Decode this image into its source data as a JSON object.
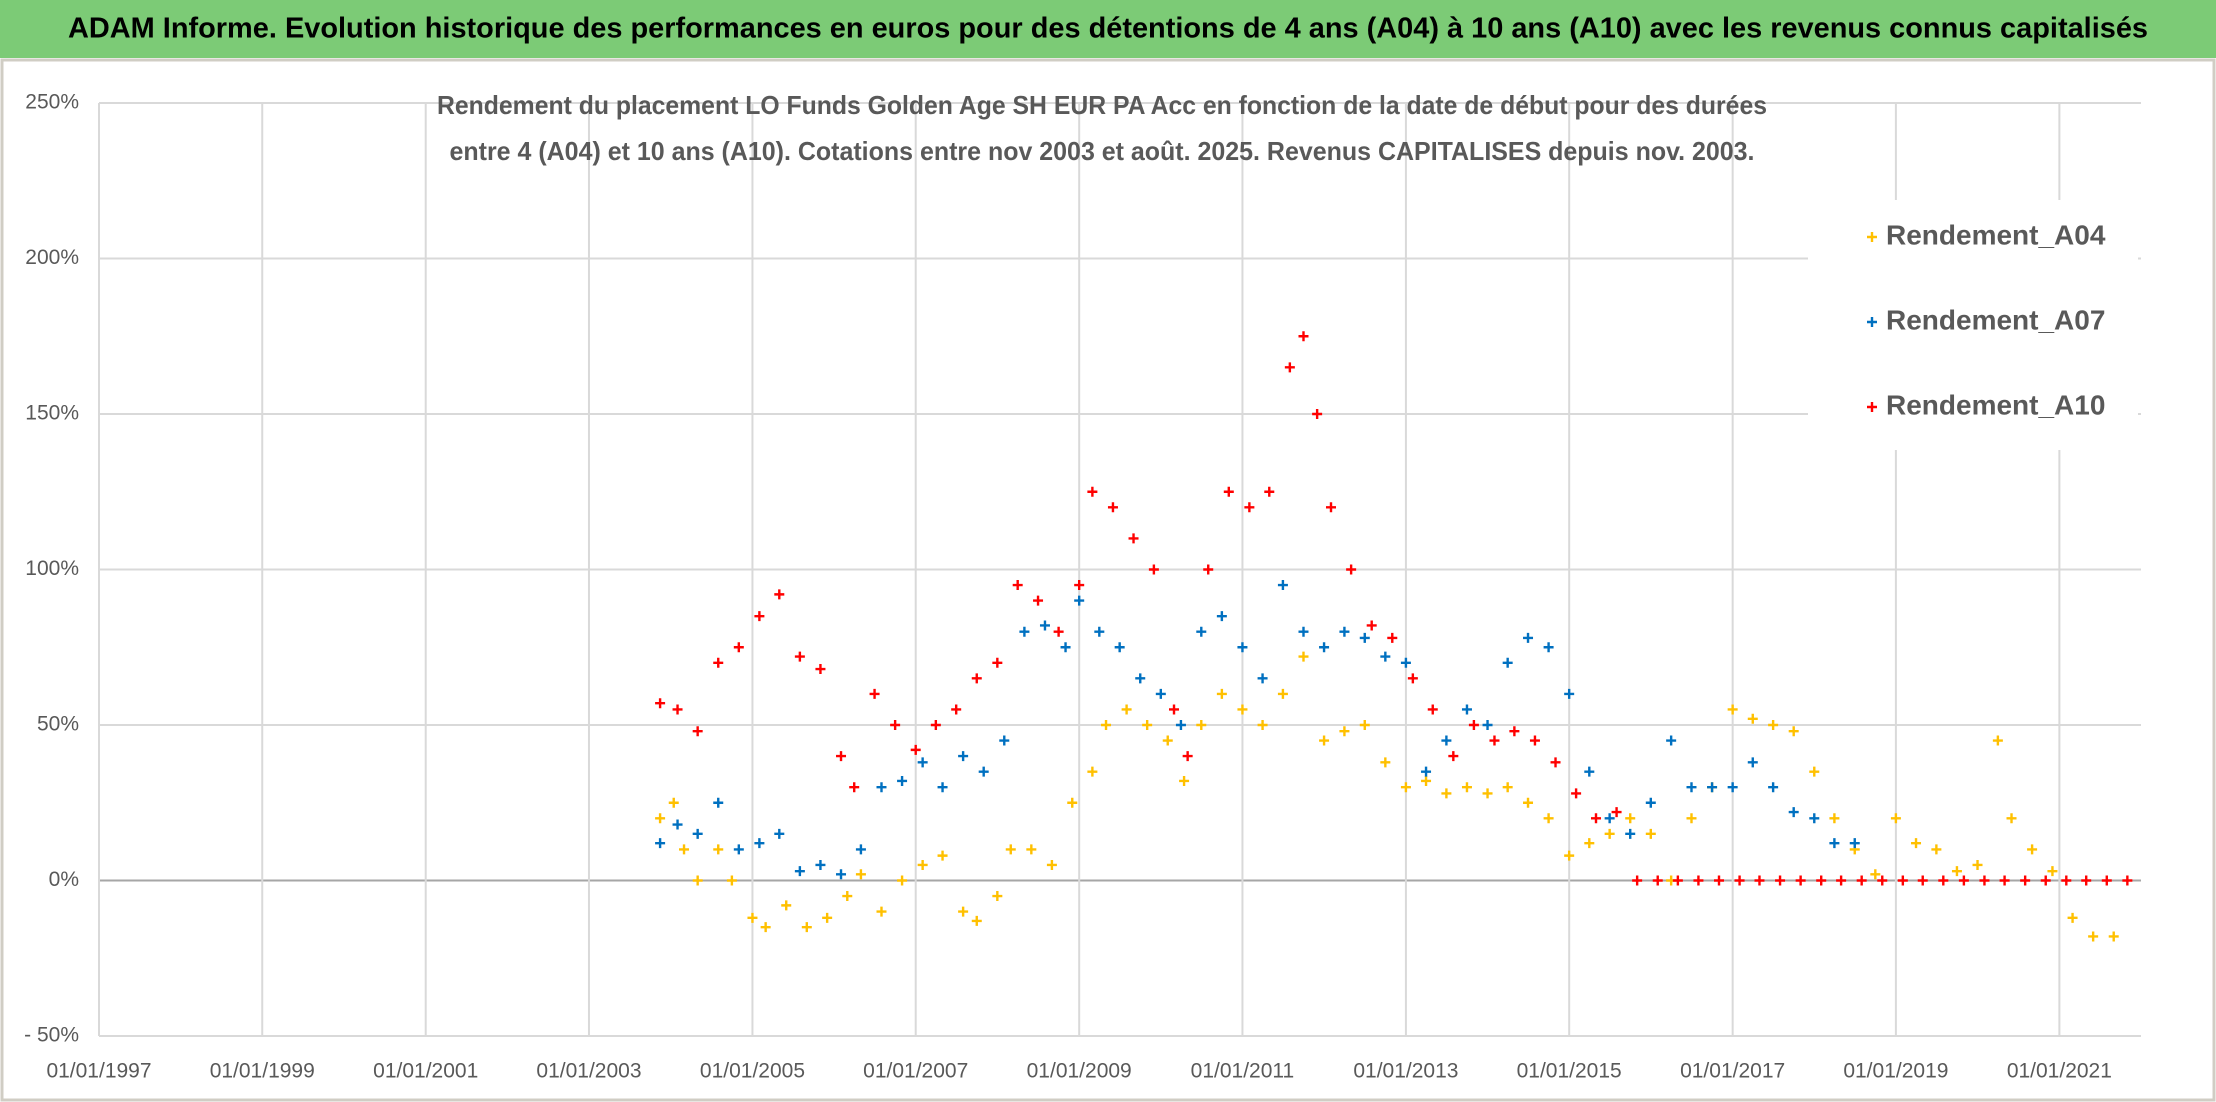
{
  "header": {
    "title": "ADAM Informe. Evolution historique des performances en euros pour des détentions de 4 ans (A04) à 10 ans (A10) avec les revenus connus capitalisés"
  },
  "chart_data": {
    "type": "scatter",
    "title": "Rendement du placement LO Funds Golden Age SH EUR PA Acc en fonction de la date de début pour des durées",
    "subtitle": "entre 4 (A04) et 10 ans (A10). Cotations entre nov 2003 et août. 2025. Revenus CAPITALISES depuis nov. 2003.",
    "marker": "plus",
    "grid": true,
    "legend": "upper-right",
    "xlim": [
      "1997-01-01",
      "2022-01-01"
    ],
    "xticks": [
      {
        "value": "1997-01-01",
        "label": "01/01/1997"
      },
      {
        "value": "1999-01-01",
        "label": "01/01/1999"
      },
      {
        "value": "2001-01-01",
        "label": "01/01/2001"
      },
      {
        "value": "2003-01-01",
        "label": "01/01/2003"
      },
      {
        "value": "2005-01-01",
        "label": "01/01/2005"
      },
      {
        "value": "2007-01-01",
        "label": "01/01/2007"
      },
      {
        "value": "2009-01-01",
        "label": "01/01/2009"
      },
      {
        "value": "2011-01-01",
        "label": "01/01/2011"
      },
      {
        "value": "2013-01-01",
        "label": "01/01/2013"
      },
      {
        "value": "2015-01-01",
        "label": "01/01/2015"
      },
      {
        "value": "2017-01-01",
        "label": "01/01/2017"
      },
      {
        "value": "2019-01-01",
        "label": "01/01/2019"
      },
      {
        "value": "2021-01-01",
        "label": "01/01/2021"
      }
    ],
    "ylim": [
      -50,
      250
    ],
    "yticks": [
      {
        "value": -50,
        "label": "- 50%"
      },
      {
        "value": 0,
        "label": "0%"
      },
      {
        "value": 50,
        "label": "50%"
      },
      {
        "value": 100,
        "label": "100%"
      },
      {
        "value": 150,
        "label": "150%"
      },
      {
        "value": 200,
        "label": "200%"
      },
      {
        "value": 250,
        "label": "250%"
      }
    ],
    "series": [
      {
        "name": "Rendement_A04",
        "color": "#ffc000",
        "x": [
          "2003-11-15",
          "2004-01-15",
          "2004-03-01",
          "2004-05-01",
          "2004-08-01",
          "2004-10-01",
          "2005-01-01",
          "2005-03-01",
          "2005-06-01",
          "2005-09-01",
          "2005-12-01",
          "2006-03-01",
          "2006-05-01",
          "2006-08-01",
          "2006-11-01",
          "2007-02-01",
          "2007-05-01",
          "2007-08-01",
          "2007-10-01",
          "2008-01-01",
          "2008-03-01",
          "2008-06-01",
          "2008-09-01",
          "2008-12-01",
          "2009-03-01",
          "2009-05-01",
          "2009-08-01",
          "2009-11-01",
          "2010-02-01",
          "2010-04-15",
          "2010-07-01",
          "2010-10-01",
          "2011-01-01",
          "2011-04-01",
          "2011-07-01",
          "2011-10-01",
          "2012-01-01",
          "2012-04-01",
          "2012-07-01",
          "2012-10-01",
          "2013-01-01",
          "2013-04-01",
          "2013-07-01",
          "2013-10-01",
          "2014-01-01",
          "2014-04-01",
          "2014-07-01",
          "2014-10-01",
          "2015-01-01",
          "2015-04-01",
          "2015-07-01",
          "2015-10-01",
          "2016-01-01",
          "2016-04-01",
          "2016-07-01",
          "2016-10-01",
          "2017-01-01",
          "2017-04-01",
          "2017-07-01",
          "2017-10-01",
          "2018-01-01",
          "2018-04-01",
          "2018-07-01",
          "2018-10-01",
          "2019-01-01",
          "2019-04-01",
          "2019-07-01",
          "2019-10-01",
          "2020-01-01",
          "2020-04-01",
          "2020-06-01",
          "2020-09-01",
          "2020-12-01",
          "2021-03-01",
          "2021-06-01",
          "2021-09-01"
        ],
        "values": [
          20,
          25,
          10,
          0,
          10,
          0,
          -12,
          -15,
          -8,
          -15,
          -12,
          -5,
          2,
          -10,
          0,
          5,
          8,
          -10,
          -13,
          -5,
          10,
          10,
          5,
          25,
          35,
          50,
          55,
          50,
          45,
          32,
          50,
          60,
          55,
          50,
          60,
          72,
          45,
          48,
          50,
          38,
          30,
          32,
          28,
          30,
          28,
          30,
          25,
          20,
          8,
          12,
          15,
          20,
          15,
          0,
          20,
          30,
          55,
          52,
          50,
          48,
          35,
          20,
          10,
          2,
          20,
          12,
          10,
          3,
          5,
          45,
          20,
          10,
          3,
          -12,
          -18,
          -18
        ]
      },
      {
        "name": "Rendement_A07",
        "color": "#0070c0",
        "x": [
          "2003-11-15",
          "2004-02-01",
          "2004-05-01",
          "2004-08-01",
          "2004-11-01",
          "2005-02-01",
          "2005-05-01",
          "2005-08-01",
          "2005-11-01",
          "2006-02-01",
          "2006-05-01",
          "2006-08-01",
          "2006-11-01",
          "2007-02-01",
          "2007-05-01",
          "2007-08-01",
          "2007-11-01",
          "2008-02-01",
          "2008-05-01",
          "2008-08-01",
          "2008-11-01",
          "2009-01-01",
          "2009-04-01",
          "2009-07-01",
          "2009-10-01",
          "2010-01-01",
          "2010-04-01",
          "2010-07-01",
          "2010-10-01",
          "2011-01-01",
          "2011-04-01",
          "2011-07-01",
          "2011-10-01",
          "2012-01-01",
          "2012-04-01",
          "2012-07-01",
          "2012-10-01",
          "2013-01-01",
          "2013-04-01",
          "2013-07-01",
          "2013-10-01",
          "2014-01-01",
          "2014-04-01",
          "2014-07-01",
          "2014-10-01",
          "2015-01-01",
          "2015-04-01",
          "2015-07-01",
          "2015-10-01",
          "2016-01-01",
          "2016-04-01",
          "2016-07-01",
          "2016-10-01",
          "2017-01-01",
          "2017-04-01",
          "2017-07-01",
          "2017-10-01",
          "2018-01-01",
          "2018-04-01",
          "2018-07-01"
        ],
        "values": [
          12,
          18,
          15,
          25,
          10,
          12,
          15,
          3,
          5,
          2,
          10,
          30,
          32,
          38,
          30,
          40,
          35,
          45,
          80,
          82,
          75,
          90,
          80,
          75,
          65,
          60,
          50,
          80,
          85,
          75,
          65,
          95,
          80,
          75,
          80,
          78,
          72,
          70,
          35,
          45,
          55,
          50,
          70,
          78,
          75,
          60,
          35,
          20,
          15,
          25,
          45,
          30,
          30,
          30,
          38,
          30,
          22,
          20,
          12,
          12
        ]
      },
      {
        "name": "Rendement_A10",
        "color": "#ff0000",
        "x": [
          "2003-11-15",
          "2004-02-01",
          "2004-05-01",
          "2004-08-01",
          "2004-11-01",
          "2005-02-01",
          "2005-05-01",
          "2005-08-01",
          "2005-11-01",
          "2006-02-01",
          "2006-04-01",
          "2006-07-01",
          "2006-10-01",
          "2007-01-01",
          "2007-04-01",
          "2007-07-01",
          "2007-10-01",
          "2008-01-01",
          "2008-04-01",
          "2008-07-01",
          "2008-10-01",
          "2009-01-01",
          "2009-03-01",
          "2009-06-01",
          "2009-09-01",
          "2009-12-01",
          "2010-03-01",
          "2010-05-01",
          "2010-08-01",
          "2010-11-01",
          "2011-02-01",
          "2011-05-01",
          "2011-08-01",
          "2011-10-01",
          "2011-12-01",
          "2012-02-01",
          "2012-05-01",
          "2012-08-01",
          "2012-11-01",
          "2013-02-01",
          "2013-05-01",
          "2013-08-01",
          "2013-11-01",
          "2014-02-01",
          "2014-05-01",
          "2014-08-01",
          "2014-11-01",
          "2015-02-01",
          "2015-05-01",
          "2015-08-01",
          "2015-11-01",
          "2016-02-01",
          "2016-05-01",
          "2016-08-01",
          "2016-11-01",
          "2017-02-01",
          "2017-05-01",
          "2017-08-01",
          "2017-11-01",
          "2018-02-01",
          "2018-05-01",
          "2018-08-01",
          "2018-11-01",
          "2019-02-01",
          "2019-05-01",
          "2019-08-01",
          "2019-11-01",
          "2020-02-01",
          "2020-05-01",
          "2020-08-01",
          "2020-11-01",
          "2021-02-01",
          "2021-05-01",
          "2021-08-01",
          "2021-11-01"
        ],
        "values": [
          57,
          55,
          48,
          70,
          75,
          85,
          92,
          72,
          68,
          40,
          30,
          60,
          50,
          42,
          50,
          55,
          65,
          70,
          95,
          90,
          80,
          95,
          125,
          120,
          110,
          100,
          55,
          40,
          100,
          125,
          120,
          125,
          165,
          175,
          150,
          120,
          100,
          82,
          78,
          65,
          55,
          40,
          50,
          45,
          48,
          45,
          38,
          28,
          20,
          22,
          0,
          0,
          0,
          0,
          0,
          0,
          0,
          0,
          0,
          0,
          0,
          0,
          0,
          0,
          0,
          0,
          0,
          0,
          0,
          0,
          0,
          0,
          0,
          0,
          0
        ]
      }
    ]
  }
}
